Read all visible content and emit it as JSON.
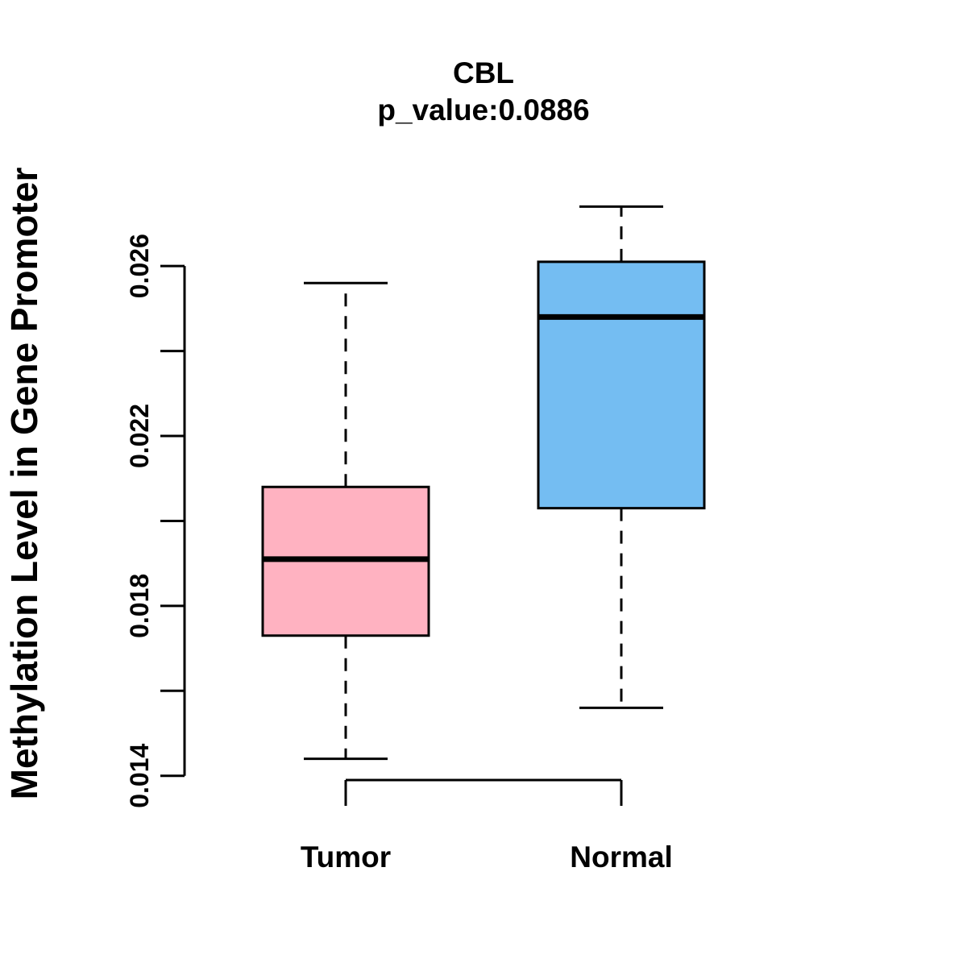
{
  "chart_data": {
    "type": "boxplot",
    "title": "CBL",
    "subtitle": "p_value:0.0886",
    "p_value": 0.0886,
    "gene": "CBL",
    "ylabel": "Methylation Level in Gene Promoter",
    "xlabel": "",
    "categories": [
      "Tumor",
      "Normal"
    ],
    "series": [
      {
        "name": "Tumor",
        "color": "#FFB2C1",
        "whisker_low": 0.0144,
        "q1": 0.0173,
        "median": 0.0191,
        "q3": 0.0208,
        "whisker_high": 0.0256
      },
      {
        "name": "Normal",
        "color": "#74BDF2",
        "whisker_low": 0.0156,
        "q1": 0.0203,
        "median": 0.0248,
        "q3": 0.0261,
        "whisker_high": 0.0274
      }
    ],
    "y_axis": {
      "ticks": [
        0.014,
        0.016,
        0.018,
        0.02,
        0.022,
        0.024,
        0.026
      ],
      "labeled_ticks": [
        "0.014",
        "0.018",
        "0.022",
        "0.026"
      ],
      "range": [
        0.0139,
        0.0279
      ]
    },
    "grid": false,
    "legend": null,
    "stroke_color": "#000000",
    "background_color": "#FFFFFF"
  }
}
